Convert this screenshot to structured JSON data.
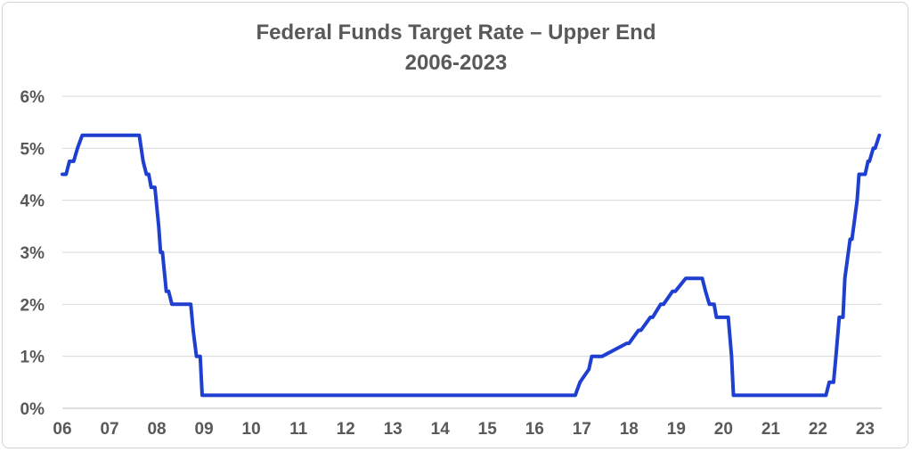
{
  "chart_data": {
    "type": "line",
    "title": "Federal Funds Target Rate – Upper End",
    "subtitle": "2006-2023",
    "xlabel": "",
    "ylabel": "",
    "x_tick_labels": [
      "06",
      "07",
      "08",
      "09",
      "10",
      "11",
      "12",
      "13",
      "14",
      "15",
      "16",
      "17",
      "18",
      "19",
      "20",
      "21",
      "22",
      "23"
    ],
    "y_tick_labels": [
      "0%",
      "1%",
      "2%",
      "3%",
      "4%",
      "5%",
      "6%"
    ],
    "ylim": [
      0,
      6
    ],
    "xlim": [
      2006.0,
      2023.35
    ],
    "grid": true,
    "legend": "none",
    "line_color": "#1f3fd0",
    "series": [
      {
        "x": [
          2006.0,
          2006.08,
          2006.15,
          2006.24,
          2006.32,
          2006.42,
          2006.6,
          2007.0,
          2007.5,
          2007.63,
          2007.71,
          2007.78,
          2007.83,
          2007.88,
          2007.96,
          2008.04,
          2008.08,
          2008.12,
          2008.2,
          2008.25,
          2008.32,
          2008.5,
          2008.72,
          2008.77,
          2008.84,
          2008.92,
          2008.96,
          2009.0,
          2012.0,
          2016.0,
          2016.86,
          2016.96,
          2017.15,
          2017.21,
          2017.43,
          2017.95,
          2018.0,
          2018.2,
          2018.25,
          2018.45,
          2018.5,
          2018.67,
          2018.73,
          2018.92,
          2018.98,
          2019.2,
          2019.55,
          2019.62,
          2019.7,
          2019.8,
          2019.85,
          2020.1,
          2020.17,
          2020.21,
          2021.0,
          2022.0,
          2022.17,
          2022.24,
          2022.33,
          2022.38,
          2022.45,
          2022.53,
          2022.57,
          2022.68,
          2022.72,
          2022.83,
          2022.87,
          2022.93,
          2023.0,
          2023.06,
          2023.09,
          2023.17,
          2023.21,
          2023.3
        ],
        "y": [
          4.5,
          4.5,
          4.75,
          4.75,
          5.0,
          5.25,
          5.25,
          5.25,
          5.25,
          5.25,
          4.75,
          4.5,
          4.5,
          4.25,
          4.25,
          3.5,
          3.0,
          3.0,
          2.25,
          2.25,
          2.0,
          2.0,
          2.0,
          1.5,
          1.0,
          1.0,
          0.25,
          0.25,
          0.25,
          0.25,
          0.25,
          0.5,
          0.75,
          1.0,
          1.0,
          1.25,
          1.25,
          1.5,
          1.5,
          1.75,
          1.75,
          2.0,
          2.0,
          2.25,
          2.25,
          2.5,
          2.5,
          2.25,
          2.0,
          2.0,
          1.75,
          1.75,
          1.0,
          0.25,
          0.25,
          0.25,
          0.25,
          0.5,
          0.5,
          1.0,
          1.75,
          1.75,
          2.5,
          3.25,
          3.25,
          4.0,
          4.5,
          4.5,
          4.5,
          4.75,
          4.75,
          5.0,
          5.0,
          5.25
        ]
      }
    ]
  }
}
